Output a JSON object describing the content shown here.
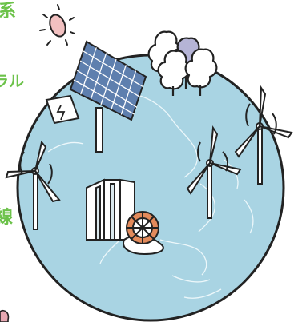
{
  "text_fragments": {
    "top": "系",
    "middle": "ラル",
    "bottom": "線"
  },
  "colors": {
    "globe": "#a9d4e3",
    "line": "#222222",
    "text_accent": "#6cc24a",
    "sun": "#f2c1c1",
    "tree_accent": "#b5b4d6"
  }
}
